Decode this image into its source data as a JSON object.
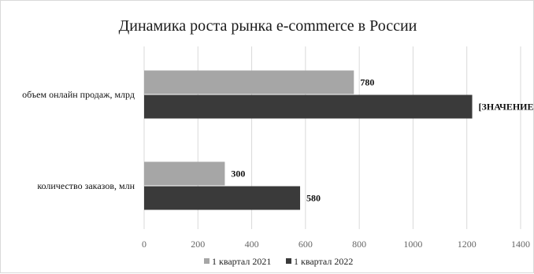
{
  "chart_data": {
    "type": "bar",
    "orientation": "horizontal",
    "title": "Динамика роста рынка e-commerce в России",
    "xlabel": "",
    "ylabel": "",
    "categories": [
      "объем онлайн продаж, млрд",
      "количество заказов, млн"
    ],
    "series": [
      {
        "name": "1 квартал 2021",
        "values": [
          780,
          300
        ],
        "labels": [
          "780",
          "300"
        ],
        "color": "#a6a6a6"
      },
      {
        "name": "1 квартал 2022",
        "values": [
          1220,
          580
        ],
        "labels": [
          "[ЗНАЧЕНИЕ]",
          "580"
        ],
        "color": "#3a3a3a"
      }
    ],
    "xlim": [
      0,
      1400
    ],
    "xticks": [
      "0",
      "200",
      "400",
      "600",
      "800",
      "1000",
      "1200",
      "1400"
    ],
    "grid": true,
    "legend": "bottom"
  }
}
